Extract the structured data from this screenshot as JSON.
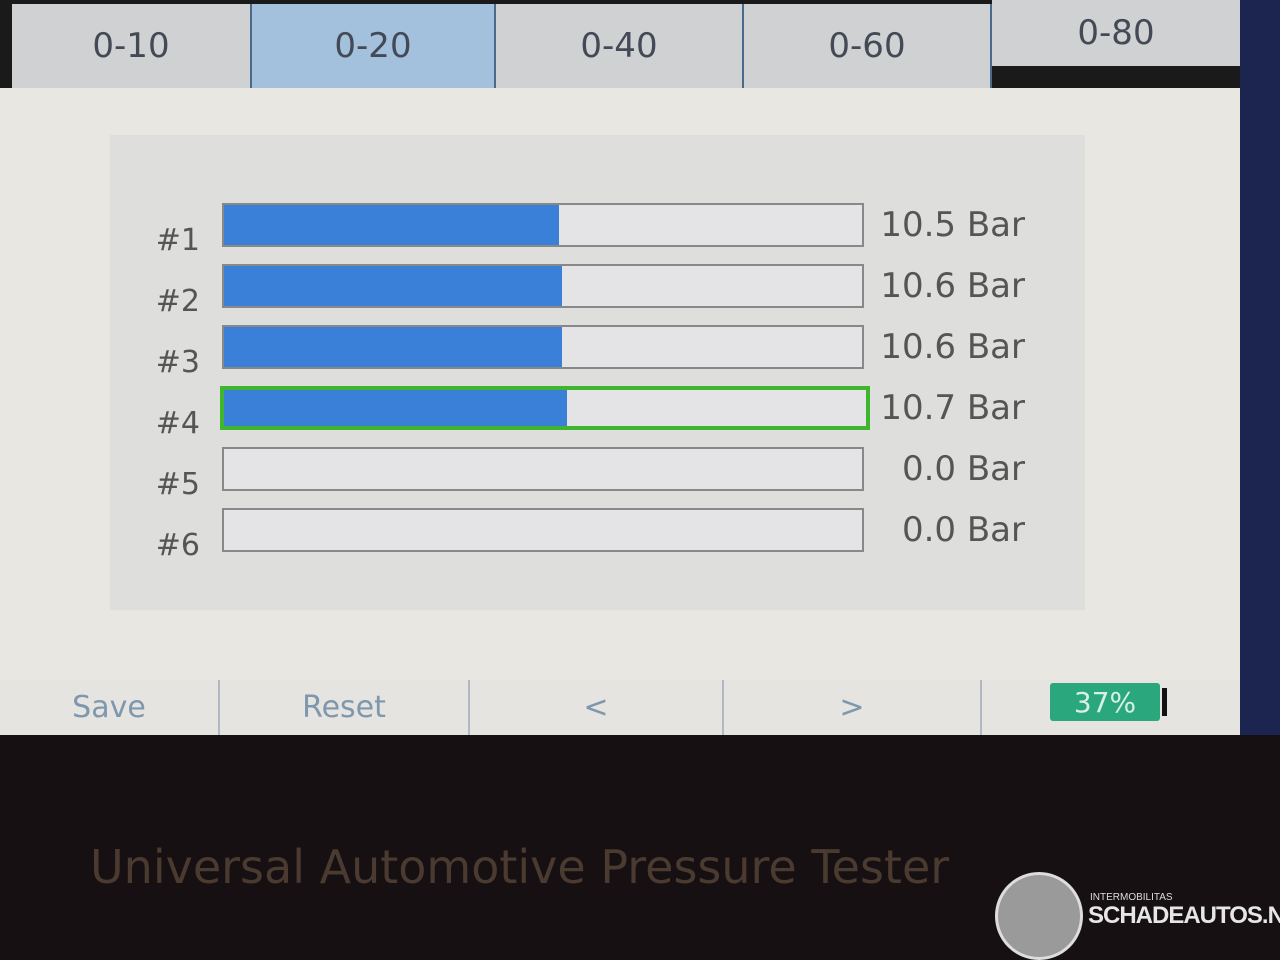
{
  "tabs": [
    {
      "label": "0-10"
    },
    {
      "label": "0-20",
      "selected": true
    },
    {
      "label": "0-40"
    },
    {
      "label": "0-60"
    },
    {
      "label": "0-80"
    }
  ],
  "channels": [
    {
      "label": "#1",
      "value": "10.5 Bar",
      "fill_fraction": 0.525
    },
    {
      "label": "#2",
      "value": "10.6 Bar",
      "fill_fraction": 0.53
    },
    {
      "label": "#3",
      "value": "10.6 Bar",
      "fill_fraction": 0.53
    },
    {
      "label": "#4",
      "value": "10.7 Bar",
      "fill_fraction": 0.535,
      "selected": true
    },
    {
      "label": "#5",
      "value": "0.0 Bar",
      "fill_fraction": 0
    },
    {
      "label": "#6",
      "value": "0.0 Bar",
      "fill_fraction": 0
    }
  ],
  "bottom": {
    "save": "Save",
    "reset": "Reset",
    "prev": "<",
    "next": ">",
    "battery": "37%"
  },
  "device_label": "Universal Automotive Pressure Tester",
  "watermark": {
    "small": "INTERMOBILITAS",
    "big": "SCHADEAUTOS.NL"
  },
  "colors": {
    "bar_fill": "#3a80d8",
    "selected_tab": "#a3c1dd",
    "selected_outline": "#3fb62e",
    "battery": "#2aa77c"
  }
}
